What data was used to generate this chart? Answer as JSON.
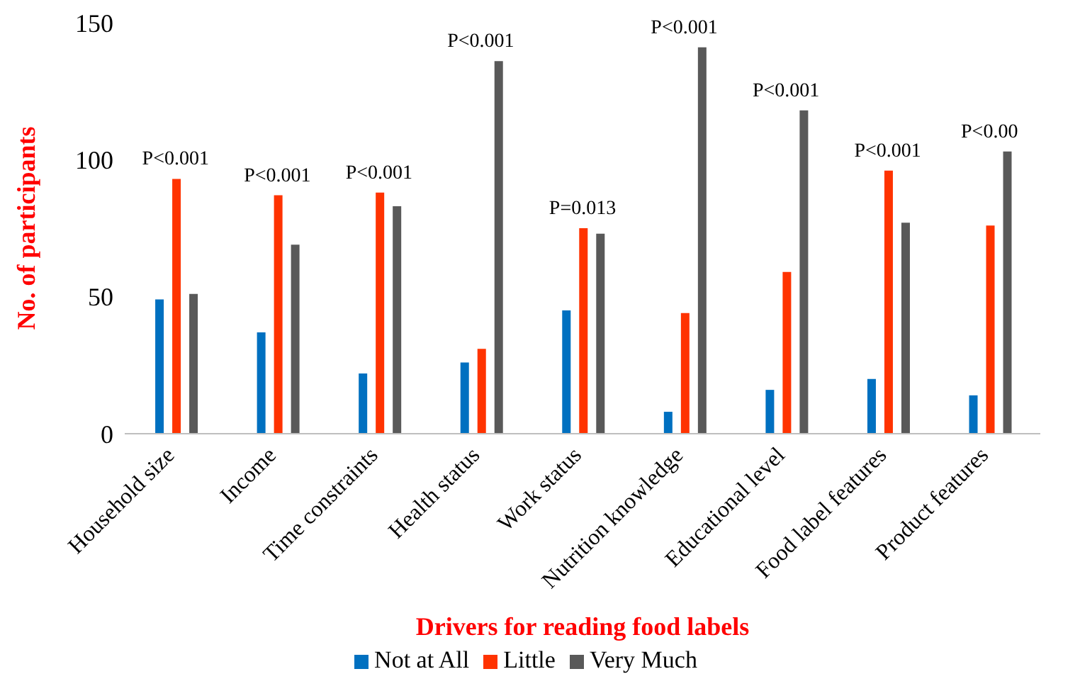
{
  "chart_data": {
    "type": "bar",
    "xlabel": "Drivers for reading food labels",
    "ylabel": "No. of participants",
    "categories": [
      "Household size",
      "Income",
      "Time constraints",
      "Health status",
      "Work status",
      "Nutrition knowledge",
      "Educational level",
      "Food label features",
      "Product features"
    ],
    "series": [
      {
        "name": "Not at All",
        "color": "#0070c0",
        "values": [
          49,
          37,
          22,
          26,
          45,
          8,
          16,
          20,
          14
        ]
      },
      {
        "name": "Little",
        "color": "#ff3300",
        "values": [
          93,
          87,
          88,
          31,
          75,
          44,
          59,
          96,
          76
        ]
      },
      {
        "name": "Very Much",
        "color": "#595959",
        "values": [
          51,
          69,
          83,
          136,
          73,
          141,
          118,
          77,
          103
        ]
      }
    ],
    "ylim": [
      0,
      150
    ],
    "yticks": [
      0,
      50,
      100,
      150
    ],
    "grid": false,
    "legend": "bottom",
    "annotations": [
      "P<0.001",
      "P<0.001",
      "P<0.001",
      "P<0.001",
      "P=0.013",
      "P<0.001",
      "P<0.001",
      "P<0.001",
      "P<0.00"
    ]
  }
}
